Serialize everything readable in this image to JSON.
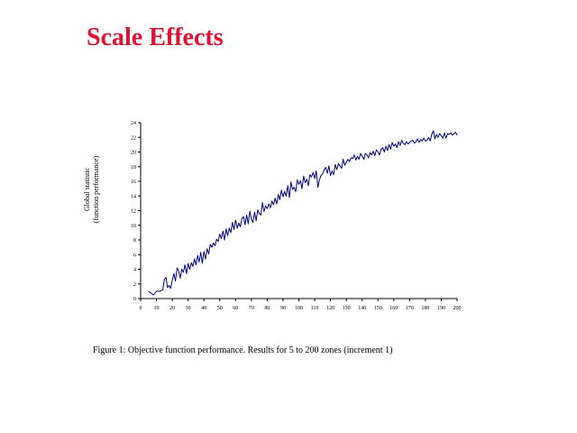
{
  "slide": {
    "title": "Scale Effects"
  },
  "caption": "Figure 1: Objective function performance.  Results for 5 to 200 zones (increment 1)",
  "colors": {
    "title": "#e0102f",
    "series": "#000080"
  },
  "chart_data": {
    "type": "line",
    "title": "",
    "ylabel_line1": "Global statistic",
    "ylabel_line2": "(function performance)",
    "xlabel": "",
    "xlim": [
      0,
      200
    ],
    "ylim": [
      0,
      24
    ],
    "x_ticks": [
      0,
      10,
      20,
      30,
      40,
      50,
      60,
      70,
      80,
      90,
      100,
      110,
      120,
      130,
      140,
      150,
      160,
      170,
      180,
      190,
      200
    ],
    "y_ticks": [
      0,
      2,
      4,
      6,
      8,
      10,
      12,
      14,
      16,
      18,
      20,
      22,
      24
    ],
    "grid": false,
    "series": [
      {
        "points": [
          [
            5,
            1.0
          ],
          [
            8,
            0.5
          ],
          [
            10,
            1.0
          ],
          [
            12,
            1.0
          ],
          [
            14,
            1.2
          ],
          [
            15,
            2.6
          ],
          [
            16,
            2.9
          ],
          [
            17,
            1.5
          ],
          [
            18,
            1.8
          ],
          [
            19,
            1.4
          ],
          [
            20,
            2.5
          ],
          [
            21,
            3.4
          ],
          [
            22,
            2.4
          ],
          [
            23,
            4.2
          ],
          [
            24,
            3.8
          ],
          [
            25,
            2.8
          ],
          [
            26,
            4.0
          ],
          [
            27,
            3.6
          ],
          [
            28,
            4.6
          ],
          [
            29,
            3.4
          ],
          [
            30,
            4.8
          ],
          [
            31,
            4.0
          ],
          [
            32,
            4.9
          ],
          [
            33,
            4.4
          ],
          [
            34,
            5.4
          ],
          [
            35,
            4.6
          ],
          [
            36,
            5.9
          ],
          [
            37,
            5.0
          ],
          [
            38,
            6.3
          ],
          [
            39,
            4.8
          ],
          [
            40,
            6.4
          ],
          [
            41,
            5.4
          ],
          [
            42,
            6.8
          ],
          [
            43,
            6.1
          ],
          [
            44,
            7.4
          ],
          [
            45,
            7.0
          ],
          [
            46,
            7.6
          ],
          [
            47,
            7.2
          ],
          [
            48,
            8.1
          ],
          [
            49,
            7.8
          ],
          [
            50,
            8.8
          ],
          [
            51,
            8.2
          ],
          [
            52,
            9.2
          ],
          [
            53,
            8.0
          ],
          [
            54,
            9.5
          ],
          [
            55,
            8.6
          ],
          [
            56,
            9.6
          ],
          [
            57,
            9.0
          ],
          [
            58,
            10.4
          ],
          [
            59,
            9.4
          ],
          [
            60,
            10.7
          ],
          [
            61,
            9.6
          ],
          [
            62,
            10.3
          ],
          [
            63,
            9.8
          ],
          [
            64,
            10.9
          ],
          [
            65,
            11.2
          ],
          [
            66,
            10.1
          ],
          [
            67,
            11.4
          ],
          [
            68,
            10.2
          ],
          [
            69,
            11.9
          ],
          [
            70,
            10.8
          ],
          [
            71,
            10.4
          ],
          [
            72,
            11.8
          ],
          [
            73,
            10.6
          ],
          [
            74,
            12.1
          ],
          [
            75,
            11.6
          ],
          [
            76,
            11.4
          ],
          [
            77,
            13.1
          ],
          [
            78,
            11.9
          ],
          [
            79,
            12.6
          ],
          [
            80,
            12.3
          ],
          [
            81,
            12.9
          ],
          [
            82,
            12.4
          ],
          [
            83,
            13.3
          ],
          [
            84,
            12.8
          ],
          [
            85,
            13.7
          ],
          [
            86,
            12.9
          ],
          [
            87,
            14.2
          ],
          [
            88,
            13.5
          ],
          [
            89,
            14.8
          ],
          [
            90,
            13.9
          ],
          [
            91,
            14.6
          ],
          [
            92,
            14.0
          ],
          [
            93,
            15.4
          ],
          [
            94,
            13.8
          ],
          [
            95,
            15.9
          ],
          [
            96,
            14.9
          ],
          [
            97,
            15.2
          ],
          [
            98,
            14.6
          ],
          [
            99,
            16.2
          ],
          [
            100,
            15.6
          ],
          [
            101,
            16.1
          ],
          [
            102,
            15.0
          ],
          [
            103,
            16.7
          ],
          [
            104,
            15.8
          ],
          [
            105,
            16.3
          ],
          [
            106,
            15.4
          ],
          [
            107,
            16.9
          ],
          [
            108,
            16.6
          ],
          [
            109,
            17.2
          ],
          [
            110,
            16.4
          ],
          [
            111,
            17.4
          ],
          [
            112,
            15.2
          ],
          [
            113,
            16.2
          ],
          [
            114,
            16.8
          ],
          [
            115,
            17.0
          ],
          [
            116,
            17.6
          ],
          [
            117,
            17.9
          ],
          [
            118,
            17.1
          ],
          [
            119,
            18.1
          ],
          [
            120,
            16.8
          ],
          [
            121,
            17.4
          ],
          [
            122,
            16.9
          ],
          [
            123,
            18.3
          ],
          [
            124,
            17.6
          ],
          [
            125,
            18.4
          ],
          [
            126,
            18.1
          ],
          [
            127,
            17.8
          ],
          [
            128,
            19.0
          ],
          [
            129,
            18.2
          ],
          [
            130,
            18.6
          ],
          [
            131,
            19.0
          ],
          [
            132,
            18.7
          ],
          [
            133,
            19.2
          ],
          [
            134,
            19.1
          ],
          [
            135,
            19.6
          ],
          [
            136,
            18.9
          ],
          [
            137,
            19.4
          ],
          [
            138,
            19.0
          ],
          [
            139,
            19.8
          ],
          [
            140,
            19.4
          ],
          [
            141,
            19.0
          ],
          [
            142,
            19.8
          ],
          [
            143,
            19.6
          ],
          [
            144,
            19.2
          ],
          [
            145,
            19.9
          ],
          [
            146,
            19.6
          ],
          [
            147,
            20.1
          ],
          [
            148,
            19.5
          ],
          [
            149,
            20.3
          ],
          [
            150,
            20.0
          ],
          [
            151,
            19.6
          ],
          [
            152,
            20.4
          ],
          [
            153,
            20.6
          ],
          [
            154,
            20.0
          ],
          [
            155,
            20.8
          ],
          [
            156,
            20.2
          ],
          [
            157,
            21.0
          ],
          [
            158,
            20.4
          ],
          [
            159,
            21.3
          ],
          [
            160,
            20.8
          ],
          [
            161,
            21.1
          ],
          [
            162,
            20.6
          ],
          [
            163,
            21.4
          ],
          [
            164,
            20.9
          ],
          [
            165,
            21.6
          ],
          [
            166,
            21.2
          ],
          [
            167,
            21.0
          ],
          [
            168,
            21.4
          ],
          [
            169,
            21.1
          ],
          [
            170,
            21.3
          ],
          [
            171,
            21.5
          ],
          [
            172,
            21.6
          ],
          [
            173,
            21.2
          ],
          [
            174,
            21.4
          ],
          [
            175,
            21.8
          ],
          [
            176,
            21.3
          ],
          [
            177,
            21.7
          ],
          [
            178,
            21.5
          ],
          [
            179,
            21.9
          ],
          [
            180,
            21.5
          ],
          [
            181,
            21.6
          ],
          [
            182,
            22.0
          ],
          [
            183,
            21.5
          ],
          [
            184,
            22.4
          ],
          [
            185,
            22.9
          ],
          [
            186,
            21.8
          ],
          [
            187,
            22.4
          ],
          [
            188,
            22.0
          ],
          [
            189,
            22.5
          ],
          [
            190,
            22.2
          ],
          [
            191,
            21.9
          ],
          [
            192,
            22.6
          ],
          [
            193,
            21.9
          ],
          [
            194,
            22.5
          ],
          [
            195,
            22.4
          ],
          [
            196,
            22.6
          ],
          [
            197,
            22.3
          ],
          [
            198,
            22.5
          ],
          [
            199,
            22.7
          ],
          [
            200,
            22.3
          ]
        ]
      }
    ]
  }
}
